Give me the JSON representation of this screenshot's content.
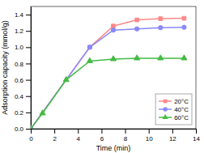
{
  "chart_data": {
    "type": "line",
    "xlabel": "Time (min)",
    "ylabel": "Adsorption capacity (mmol/g)",
    "series": [
      {
        "name": "20°C",
        "color": "#ff8888",
        "marker": "square",
        "x": [
          0,
          5,
          7,
          9,
          11,
          13
        ],
        "values": [
          0.0,
          1.0,
          1.26,
          1.335,
          1.35,
          1.355
        ]
      },
      {
        "name": "40°C",
        "color": "#8888ff",
        "marker": "circle",
        "x": [
          0,
          5,
          7,
          9,
          11,
          13
        ],
        "values": [
          0.0,
          1.0,
          1.21,
          1.225,
          1.24,
          1.245
        ]
      },
      {
        "name": "60°C",
        "color": "#44bb44",
        "marker": "triangle",
        "x": [
          0,
          1,
          3,
          5,
          7,
          9,
          11,
          13
        ],
        "values": [
          0.0,
          0.19,
          0.6,
          0.83,
          0.855,
          0.865,
          0.865,
          0.865
        ]
      }
    ],
    "xlim": [
      0,
      14
    ],
    "ylim": [
      0.0,
      1.5
    ],
    "xticks": [
      0,
      2,
      4,
      6,
      8,
      10,
      12,
      14
    ],
    "yticks": [
      {
        "value": 0.0,
        "label": "0.0"
      },
      0.2,
      0.4,
      0.6,
      0.8,
      {
        "value": 1.0,
        "label": "1.0"
      },
      1.2,
      1.4
    ],
    "grid": false,
    "legend": "lower right"
  }
}
